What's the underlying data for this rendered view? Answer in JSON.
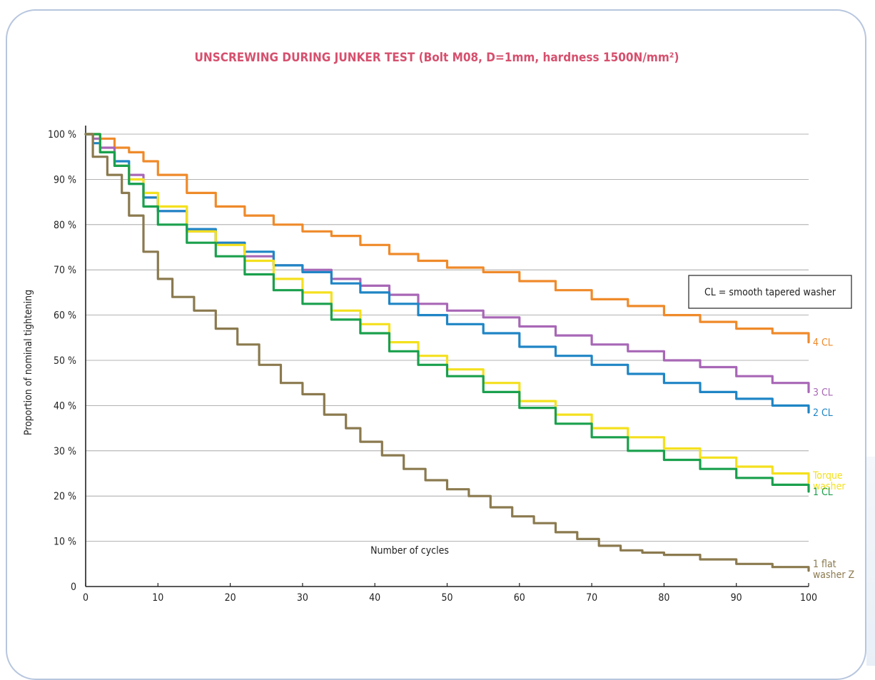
{
  "chart_data": {
    "type": "line",
    "title": "UNSCREWING DURING JUNKER TEST  (Bolt M08, D=1mm, hardness 1500N/mm²)",
    "xlabel": "Number of cycles",
    "ylabel": "Proportion of nominal tightening",
    "xlim": [
      0,
      100
    ],
    "ylim": [
      0,
      100
    ],
    "grid": "horizontal",
    "x_ticks": [
      "0",
      "10",
      "20",
      "30",
      "40",
      "50",
      "60",
      "70",
      "80",
      "90",
      "100"
    ],
    "y_ticks": [
      "0",
      "10 %",
      "20 %",
      "30 %",
      "40 %",
      "50 %",
      "60 %",
      "70 %",
      "80 %",
      "90 %",
      "100 %"
    ],
    "note": "CL = smooth tapered washer",
    "series": [
      {
        "name": "4 CL",
        "label_lines": [
          "4 CL"
        ],
        "color": "#ef8a2a",
        "points": [
          [
            0,
            100
          ],
          [
            2,
            99
          ],
          [
            4,
            97
          ],
          [
            6,
            96
          ],
          [
            8,
            94
          ],
          [
            10,
            91
          ],
          [
            14,
            87
          ],
          [
            18,
            84
          ],
          [
            22,
            82
          ],
          [
            26,
            80
          ],
          [
            30,
            78.5
          ],
          [
            34,
            77.5
          ],
          [
            38,
            75.5
          ],
          [
            42,
            73.5
          ],
          [
            46,
            72
          ],
          [
            50,
            70.5
          ],
          [
            55,
            69.5
          ],
          [
            60,
            67.5
          ],
          [
            65,
            65.5
          ],
          [
            70,
            63.5
          ],
          [
            75,
            62
          ],
          [
            80,
            60
          ],
          [
            85,
            58.5
          ],
          [
            90,
            57
          ],
          [
            95,
            56
          ],
          [
            100,
            54
          ]
        ]
      },
      {
        "name": "3 CL",
        "label_lines": [
          "3 CL"
        ],
        "color": "#a867b6",
        "points": [
          [
            0,
            100
          ],
          [
            1,
            99
          ],
          [
            2,
            97
          ],
          [
            4,
            93
          ],
          [
            6,
            91
          ],
          [
            8,
            86
          ],
          [
            10,
            83
          ],
          [
            14,
            78.5
          ],
          [
            18,
            76
          ],
          [
            22,
            73
          ],
          [
            26,
            71
          ],
          [
            30,
            70
          ],
          [
            34,
            68
          ],
          [
            38,
            66.5
          ],
          [
            42,
            64.5
          ],
          [
            46,
            62.5
          ],
          [
            50,
            61
          ],
          [
            55,
            59.5
          ],
          [
            60,
            57.5
          ],
          [
            65,
            55.5
          ],
          [
            70,
            53.5
          ],
          [
            75,
            52
          ],
          [
            80,
            50
          ],
          [
            85,
            48.5
          ],
          [
            90,
            46.5
          ],
          [
            95,
            45
          ],
          [
            100,
            43
          ]
        ]
      },
      {
        "name": "2 CL",
        "label_lines": [
          "2 CL"
        ],
        "color": "#1f85c5",
        "points": [
          [
            0,
            100
          ],
          [
            1,
            98
          ],
          [
            2,
            96
          ],
          [
            4,
            94
          ],
          [
            6,
            89
          ],
          [
            8,
            86
          ],
          [
            10,
            83
          ],
          [
            14,
            79
          ],
          [
            18,
            76
          ],
          [
            22,
            74
          ],
          [
            26,
            71
          ],
          [
            30,
            69.5
          ],
          [
            34,
            67
          ],
          [
            38,
            65
          ],
          [
            42,
            62.5
          ],
          [
            46,
            60
          ],
          [
            50,
            58
          ],
          [
            55,
            56
          ],
          [
            60,
            53
          ],
          [
            65,
            51
          ],
          [
            70,
            49
          ],
          [
            75,
            47
          ],
          [
            80,
            45
          ],
          [
            85,
            43
          ],
          [
            90,
            41.5
          ],
          [
            95,
            40
          ],
          [
            100,
            38.5
          ]
        ]
      },
      {
        "name": "Torque washer",
        "label_lines": [
          "Torque",
          "washer"
        ],
        "color": "#f4e01e",
        "points": [
          [
            0,
            100
          ],
          [
            2,
            96
          ],
          [
            4,
            93
          ],
          [
            6,
            90
          ],
          [
            8,
            87
          ],
          [
            10,
            84
          ],
          [
            14,
            78.5
          ],
          [
            18,
            75.5
          ],
          [
            22,
            72
          ],
          [
            26,
            68
          ],
          [
            30,
            65
          ],
          [
            34,
            61
          ],
          [
            38,
            58
          ],
          [
            42,
            54
          ],
          [
            46,
            51
          ],
          [
            50,
            48
          ],
          [
            55,
            45
          ],
          [
            60,
            41
          ],
          [
            65,
            38
          ],
          [
            70,
            35
          ],
          [
            75,
            33
          ],
          [
            80,
            30.5
          ],
          [
            85,
            28.5
          ],
          [
            90,
            26.5
          ],
          [
            95,
            25
          ],
          [
            100,
            23
          ]
        ]
      },
      {
        "name": "1 CL",
        "label_lines": [
          "1 CL"
        ],
        "color": "#1aa04d",
        "points": [
          [
            0,
            100
          ],
          [
            2,
            96
          ],
          [
            4,
            93
          ],
          [
            6,
            89
          ],
          [
            8,
            84
          ],
          [
            10,
            80
          ],
          [
            14,
            76
          ],
          [
            18,
            73
          ],
          [
            22,
            69
          ],
          [
            26,
            65.5
          ],
          [
            30,
            62.5
          ],
          [
            34,
            59
          ],
          [
            38,
            56
          ],
          [
            42,
            52
          ],
          [
            46,
            49
          ],
          [
            50,
            46.5
          ],
          [
            55,
            43
          ],
          [
            60,
            39.5
          ],
          [
            65,
            36
          ],
          [
            70,
            33
          ],
          [
            75,
            30
          ],
          [
            80,
            28
          ],
          [
            85,
            26
          ],
          [
            90,
            24
          ],
          [
            95,
            22.5
          ],
          [
            100,
            21
          ]
        ]
      },
      {
        "name": "1 flat washer Z",
        "label_lines": [
          "1 flat",
          "washer Z"
        ],
        "color": "#8b7a4f",
        "points": [
          [
            0,
            100
          ],
          [
            1,
            95
          ],
          [
            3,
            91
          ],
          [
            5,
            87
          ],
          [
            6,
            82
          ],
          [
            8,
            74
          ],
          [
            10,
            68
          ],
          [
            12,
            64
          ],
          [
            15,
            61
          ],
          [
            18,
            57
          ],
          [
            21,
            53.5
          ],
          [
            24,
            49
          ],
          [
            27,
            45
          ],
          [
            30,
            42.5
          ],
          [
            33,
            38
          ],
          [
            36,
            35
          ],
          [
            38,
            32
          ],
          [
            41,
            29
          ],
          [
            44,
            26
          ],
          [
            47,
            23.5
          ],
          [
            50,
            21.5
          ],
          [
            53,
            20
          ],
          [
            56,
            17.5
          ],
          [
            59,
            15.5
          ],
          [
            62,
            14
          ],
          [
            65,
            12
          ],
          [
            68,
            10.5
          ],
          [
            71,
            9
          ],
          [
            74,
            8
          ],
          [
            77,
            7.5
          ],
          [
            80,
            7
          ],
          [
            85,
            6
          ],
          [
            90,
            5
          ],
          [
            95,
            4.3
          ],
          [
            100,
            3.5
          ]
        ]
      }
    ]
  }
}
